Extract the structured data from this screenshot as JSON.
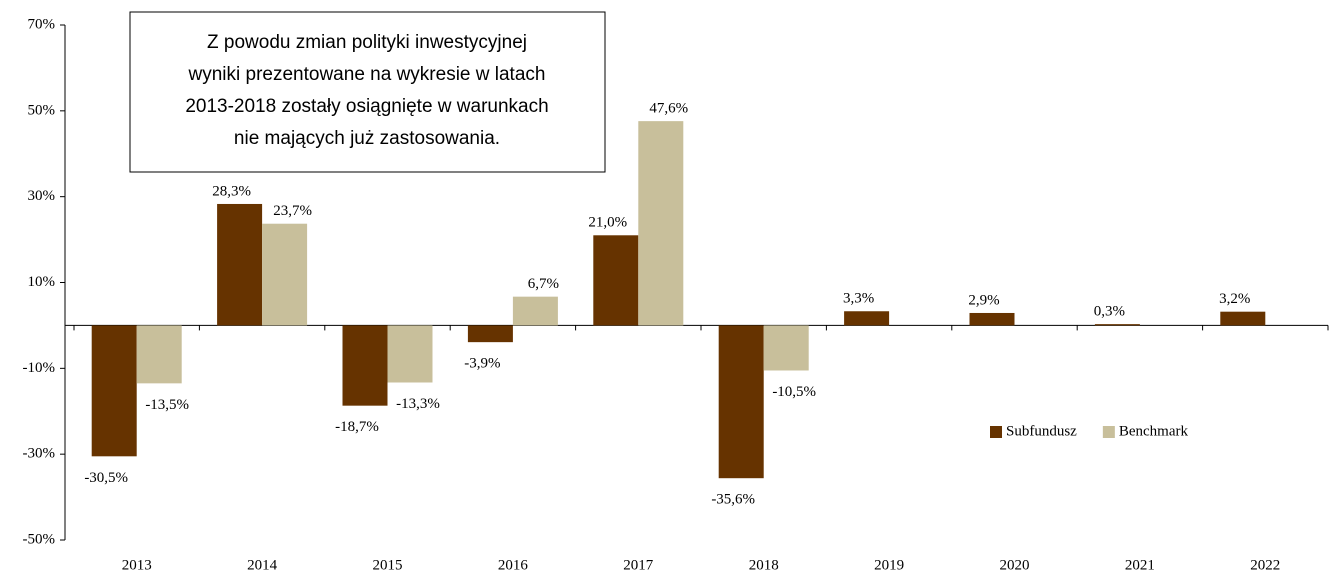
{
  "chart_data": {
    "type": "bar",
    "annotation": [
      "Z powodu zmian polityki inwestycyjnej",
      "wyniki prezentowane na wykresie w latach",
      "2013-2018 zostały osiągnięte w warunkach",
      "nie mających już zastosowania."
    ],
    "categories": [
      "2013",
      "2014",
      "2015",
      "2016",
      "2017",
      "2018",
      "2019",
      "2020",
      "2021",
      "2022"
    ],
    "series": [
      {
        "name": "Subfundusz",
        "color": "#663300",
        "values": [
          -30.5,
          28.3,
          -18.7,
          -3.9,
          21.0,
          -35.6,
          3.3,
          2.9,
          0.3,
          3.2
        ],
        "value_labels": [
          "-30,5%",
          "28,3%",
          "-18,7%",
          "-3,9%",
          "21,0%",
          "-35,6%",
          "3,3%",
          "2,9%",
          "0,3%",
          "3,2%"
        ]
      },
      {
        "name": "Benchmark",
        "color": "#c8bf9b",
        "values": [
          -13.5,
          23.7,
          -13.3,
          6.7,
          47.6,
          -10.5,
          null,
          null,
          null,
          null
        ],
        "value_labels": [
          "-13,5%",
          "23,7%",
          "-13,3%",
          "6,7%",
          "47,6%",
          "-10,5%",
          null,
          null,
          null,
          null
        ]
      }
    ],
    "ylim": [
      -50,
      70
    ],
    "yticks": [
      {
        "value": -50,
        "label": "-50%"
      },
      {
        "value": -30,
        "label": "-30%"
      },
      {
        "value": -10,
        "label": "-10%"
      },
      {
        "value": 10,
        "label": "10%"
      },
      {
        "value": 30,
        "label": "30%"
      },
      {
        "value": 50,
        "label": "50%"
      },
      {
        "value": 70,
        "label": "70%"
      }
    ],
    "legend": "right"
  }
}
